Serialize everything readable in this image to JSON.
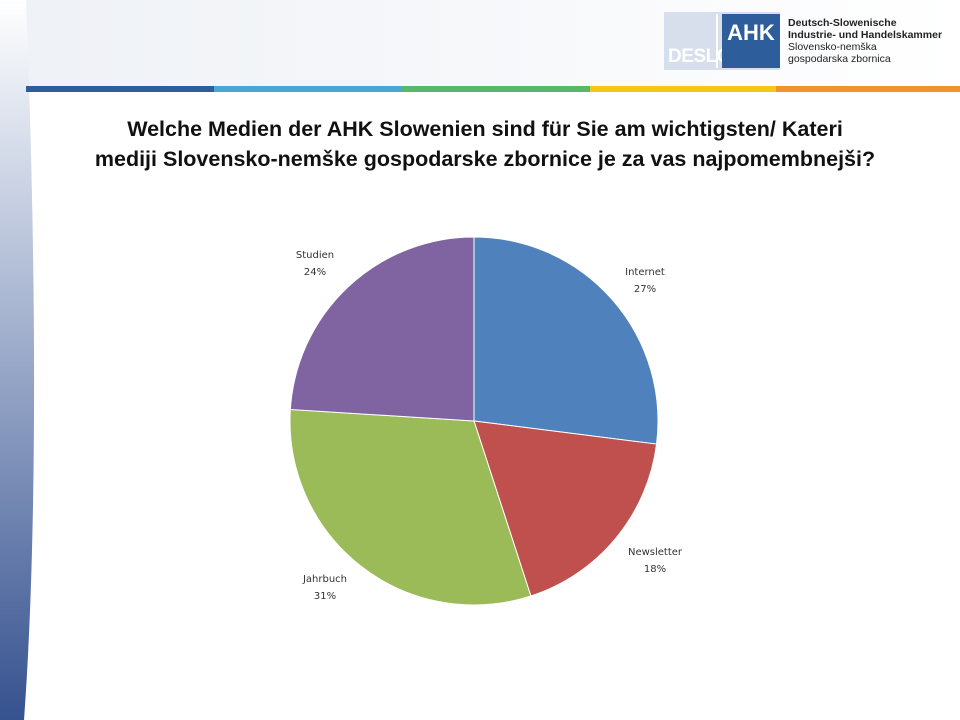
{
  "header": {
    "logo_deslo": "DESLO",
    "logo_ahk": "AHK",
    "logo_lines": [
      "Deutsch-Slowenische",
      "Industrie- und Handelskammer",
      "Slovensko-nemška",
      "gospodarska zbornica"
    ],
    "title_line1": "Welche Medien der AHK Slowenien sind für Sie am wichtigsten/ Kateri",
    "title_line2": "mediji Slovensko-nemške gospodarske zbornice je za vas najpomembnejši?"
  },
  "colors": {
    "stripes": [
      "#2e5d9c",
      "#4aa6d6",
      "#57b869",
      "#f5c518",
      "#f0932b"
    ],
    "left_decor": "#36528f"
  },
  "chart_data": {
    "type": "pie",
    "title": "",
    "slices": [
      {
        "label": "Internet",
        "value": 27,
        "pct": "27%",
        "color": "#4f81bd"
      },
      {
        "label": "Newsletter",
        "value": 18,
        "pct": "18%",
        "color": "#c0504d"
      },
      {
        "label": "Jahrbuch",
        "value": 31,
        "pct": "31%",
        "color": "#9bbb59"
      },
      {
        "label": "Studien",
        "value": 24,
        "pct": "24%",
        "color": "#8064a2"
      }
    ],
    "start": "12 o'clock",
    "direction": "clockwise",
    "legend": "none"
  }
}
